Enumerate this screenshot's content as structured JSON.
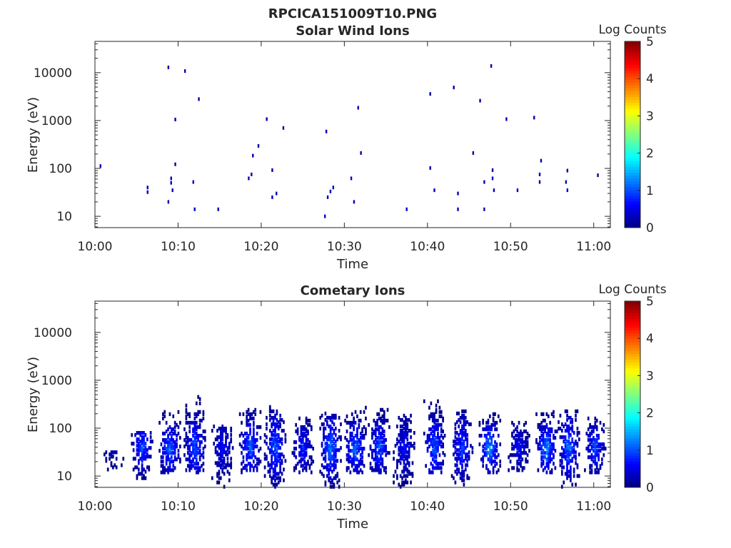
{
  "figure": {
    "title": "RPCICA151009T10.PNG"
  },
  "chart_data": [
    {
      "type": "heatmap",
      "title": "Solar Wind Ions",
      "xlabel": "Time",
      "ylabel": "Energy (eV)",
      "y_scale": "log",
      "ylim": [
        5.8,
        45000
      ],
      "xlim": [
        "10:00",
        "11:02"
      ],
      "x_ticks": [
        "10:00",
        "10:10",
        "10:20",
        "10:30",
        "10:40",
        "10:50",
        "11:00"
      ],
      "y_ticks": [
        "10",
        "100",
        "1000",
        "10000"
      ],
      "colorbar": {
        "label": "Log Counts",
        "range": [
          0,
          5
        ],
        "ticks": [
          "0",
          "1",
          "2",
          "3",
          "4",
          "5"
        ],
        "colormap": "jet"
      },
      "cells": [
        {
          "t": "10:00:40",
          "e": 112,
          "v": 0.2
        },
        {
          "t": "10:06:20",
          "e": 40,
          "v": 0.3
        },
        {
          "t": "10:06:20",
          "e": 32,
          "v": 0.3
        },
        {
          "t": "10:08:50",
          "e": 12900,
          "v": 0.2
        },
        {
          "t": "10:09:10",
          "e": 50,
          "v": 0.4
        },
        {
          "t": "10:09:10",
          "e": 62,
          "v": 0.3
        },
        {
          "t": "10:09:20",
          "e": 35,
          "v": 0.3
        },
        {
          "t": "10:08:50",
          "e": 20,
          "v": 0.3
        },
        {
          "t": "10:09:40",
          "e": 1050,
          "v": 0.2
        },
        {
          "t": "10:09:40",
          "e": 122,
          "v": 0.2
        },
        {
          "t": "10:10:50",
          "e": 10800,
          "v": 0.2
        },
        {
          "t": "10:11:50",
          "e": 52,
          "v": 0.3
        },
        {
          "t": "10:12:00",
          "e": 14,
          "v": 0.3
        },
        {
          "t": "10:12:30",
          "e": 2800,
          "v": 0.2
        },
        {
          "t": "10:14:50",
          "e": 14,
          "v": 0.3
        },
        {
          "t": "10:18:30",
          "e": 62,
          "v": 0.3
        },
        {
          "t": "10:18:50",
          "e": 75,
          "v": 0.3
        },
        {
          "t": "10:19:00",
          "e": 185,
          "v": 0.2
        },
        {
          "t": "10:19:40",
          "e": 295,
          "v": 0.2
        },
        {
          "t": "10:20:40",
          "e": 1070,
          "v": 0.2
        },
        {
          "t": "10:21:20",
          "e": 25,
          "v": 0.3
        },
        {
          "t": "10:21:20",
          "e": 92,
          "v": 0.2
        },
        {
          "t": "10:21:50",
          "e": 30,
          "v": 0.3
        },
        {
          "t": "10:22:40",
          "e": 700,
          "v": 0.2
        },
        {
          "t": "10:27:40",
          "e": 10,
          "v": 0.4
        },
        {
          "t": "10:27:50",
          "e": 590,
          "v": 0.2
        },
        {
          "t": "10:28:00",
          "e": 25,
          "v": 0.3
        },
        {
          "t": "10:28:20",
          "e": 33,
          "v": 0.3
        },
        {
          "t": "10:28:40",
          "e": 40,
          "v": 0.3
        },
        {
          "t": "10:30:50",
          "e": 62,
          "v": 0.3
        },
        {
          "t": "10:31:10",
          "e": 20,
          "v": 0.3
        },
        {
          "t": "10:31:40",
          "e": 1850,
          "v": 0.2
        },
        {
          "t": "10:32:00",
          "e": 210,
          "v": 0.2
        },
        {
          "t": "10:37:30",
          "e": 14,
          "v": 0.4
        },
        {
          "t": "10:40:20",
          "e": 3600,
          "v": 0.2
        },
        {
          "t": "10:40:20",
          "e": 102,
          "v": 0.2
        },
        {
          "t": "10:40:50",
          "e": 35,
          "v": 0.3
        },
        {
          "t": "10:43:10",
          "e": 4900,
          "v": 0.2
        },
        {
          "t": "10:43:40",
          "e": 30,
          "v": 0.3
        },
        {
          "t": "10:43:40",
          "e": 14,
          "v": 0.3
        },
        {
          "t": "10:45:30",
          "e": 210,
          "v": 0.2
        },
        {
          "t": "10:46:20",
          "e": 2600,
          "v": 0.2
        },
        {
          "t": "10:46:50",
          "e": 52,
          "v": 0.3
        },
        {
          "t": "10:46:50",
          "e": 14,
          "v": 0.3
        },
        {
          "t": "10:47:40",
          "e": 13800,
          "v": 0.2
        },
        {
          "t": "10:47:50",
          "e": 92,
          "v": 0.2
        },
        {
          "t": "10:47:50",
          "e": 62,
          "v": 0.3
        },
        {
          "t": "10:48:00",
          "e": 35,
          "v": 0.3
        },
        {
          "t": "10:49:30",
          "e": 1070,
          "v": 0.2
        },
        {
          "t": "10:50:50",
          "e": 35,
          "v": 0.3
        },
        {
          "t": "10:52:50",
          "e": 1150,
          "v": 0.2
        },
        {
          "t": "10:53:40",
          "e": 145,
          "v": 0.2
        },
        {
          "t": "10:53:30",
          "e": 52,
          "v": 0.3
        },
        {
          "t": "10:53:30",
          "e": 75,
          "v": 0.3
        },
        {
          "t": "10:56:40",
          "e": 52,
          "v": 0.3
        },
        {
          "t": "10:56:50",
          "e": 90,
          "v": 0.2
        },
        {
          "t": "10:56:50",
          "e": 35,
          "v": 0.3
        },
        {
          "t": "11:00:30",
          "e": 72,
          "v": 0.2
        }
      ]
    },
    {
      "type": "heatmap",
      "title": "Cometary Ions",
      "xlabel": "Time",
      "ylabel": "Energy (eV)",
      "y_scale": "log",
      "ylim": [
        5.8,
        45000
      ],
      "xlim": [
        "10:00",
        "11:02"
      ],
      "x_ticks": [
        "10:00",
        "10:10",
        "10:20",
        "10:30",
        "10:40",
        "10:50",
        "11:00"
      ],
      "y_ticks": [
        "10",
        "100",
        "1000",
        "10000"
      ],
      "colorbar": {
        "label": "Log Counts",
        "range": [
          0,
          5
        ],
        "ticks": [
          "0",
          "1",
          "2",
          "3",
          "4",
          "5"
        ],
        "colormap": "jet"
      },
      "bursts": [
        {
          "t": "10:02:10",
          "e_low": 6,
          "e_high": 35,
          "peak": 0.4
        },
        {
          "t": "10:05:40",
          "e_low": 6,
          "e_high": 90,
          "peak": 1.3
        },
        {
          "t": "10:09:00",
          "e_low": 12,
          "e_high": 240,
          "peak": 1.5
        },
        {
          "t": "10:12:00",
          "e_low": 12,
          "e_high": 500,
          "peak": 1.3
        },
        {
          "t": "10:15:20",
          "e_low": 6,
          "e_high": 120,
          "peak": 0.8
        },
        {
          "t": "10:18:40",
          "e_low": 12,
          "e_high": 380,
          "peak": 1.4
        },
        {
          "t": "10:21:40",
          "e_low": 6,
          "e_high": 300,
          "peak": 1.4
        },
        {
          "t": "10:25:00",
          "e_low": 12,
          "e_high": 200,
          "peak": 1.0
        },
        {
          "t": "10:28:20",
          "e_low": 6,
          "e_high": 230,
          "peak": 1.6
        },
        {
          "t": "10:31:20",
          "e_low": 12,
          "e_high": 300,
          "peak": 1.5
        },
        {
          "t": "10:34:10",
          "e_low": 12,
          "e_high": 280,
          "peak": 1.3
        },
        {
          "t": "10:37:10",
          "e_low": 6,
          "e_high": 200,
          "peak": 0.8
        },
        {
          "t": "10:40:50",
          "e_low": 12,
          "e_high": 430,
          "peak": 1.4
        },
        {
          "t": "10:44:10",
          "e_low": 6,
          "e_high": 240,
          "peak": 1.2
        },
        {
          "t": "10:47:30",
          "e_low": 12,
          "e_high": 210,
          "peak": 1.7
        },
        {
          "t": "10:51:00",
          "e_low": 12,
          "e_high": 150,
          "peak": 0.8
        },
        {
          "t": "10:54:20",
          "e_low": 12,
          "e_high": 230,
          "peak": 1.7
        },
        {
          "t": "10:57:00",
          "e_low": 6,
          "e_high": 240,
          "peak": 1.5
        },
        {
          "t": "11:00:10",
          "e_low": 12,
          "e_high": 180,
          "peak": 1.3
        }
      ]
    }
  ]
}
